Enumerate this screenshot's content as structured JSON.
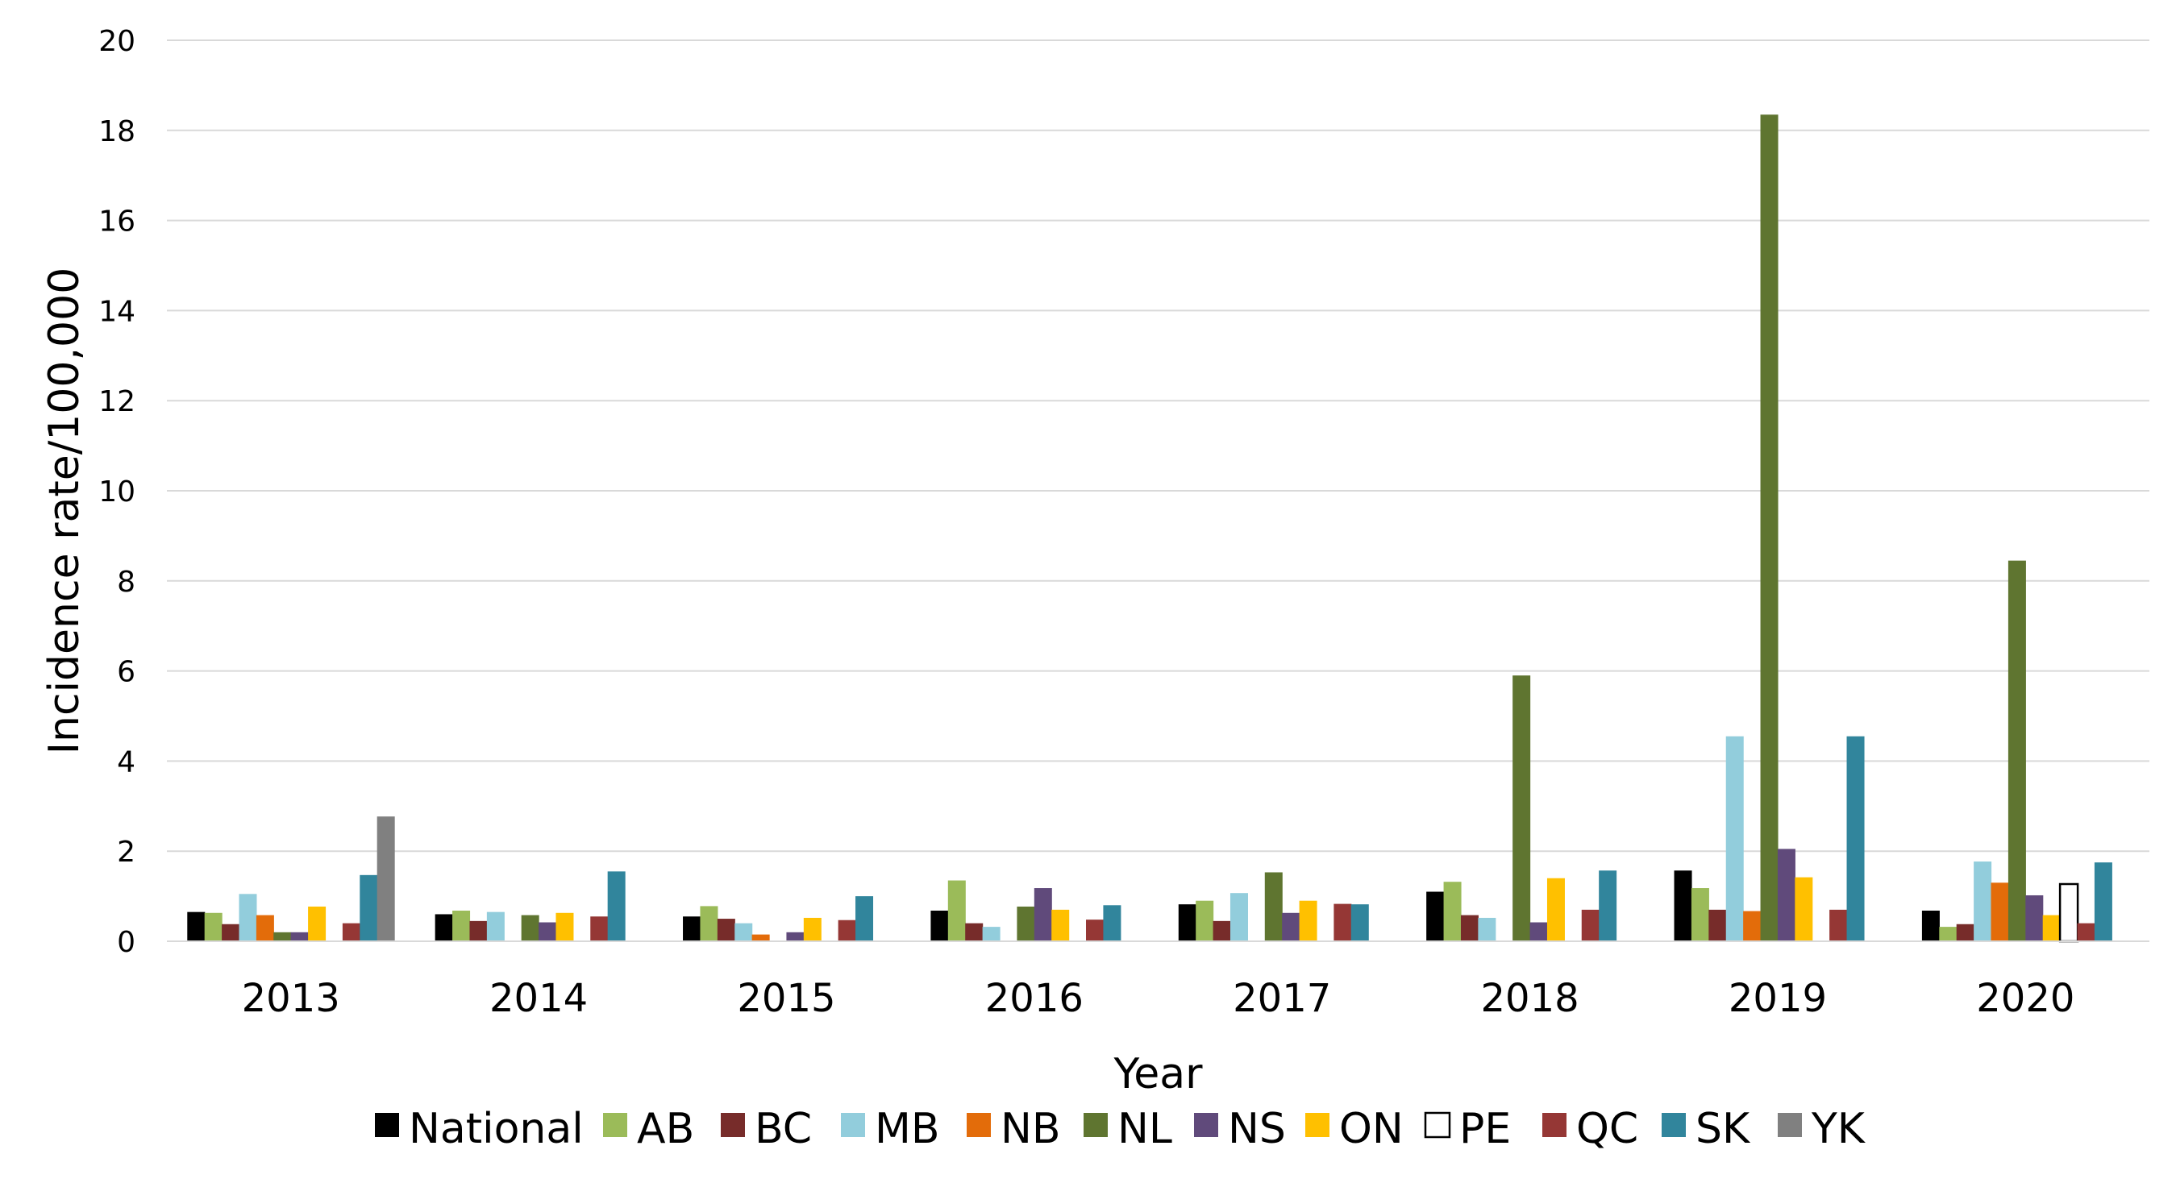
{
  "chart_data": {
    "type": "bar",
    "title": "",
    "xlabel": "Year",
    "ylabel": "Incidence rate/100,000",
    "ylim": [
      0,
      20
    ],
    "yticks": [
      0,
      2,
      4,
      6,
      8,
      10,
      12,
      14,
      16,
      18,
      20
    ],
    "grid": "horizontal",
    "legend_position": "bottom",
    "categories": [
      "2013",
      "2014",
      "2015",
      "2016",
      "2017",
      "2018",
      "2019",
      "2020"
    ],
    "series": [
      {
        "name": "National",
        "color": "#000000",
        "values": [
          0.65,
          0.6,
          0.55,
          0.68,
          0.82,
          1.1,
          1.57,
          0.68
        ]
      },
      {
        "name": "AB",
        "color": "#9BBB59",
        "values": [
          0.63,
          0.68,
          0.78,
          1.35,
          0.9,
          1.32,
          1.18,
          0.32
        ]
      },
      {
        "name": "BC",
        "color": "#772C2A",
        "values": [
          0.38,
          0.45,
          0.5,
          0.4,
          0.45,
          0.58,
          0.7,
          0.38
        ]
      },
      {
        "name": "MB",
        "color": "#92CDDC",
        "values": [
          1.05,
          0.65,
          0.4,
          0.32,
          1.07,
          0.52,
          4.55,
          1.77
        ]
      },
      {
        "name": "NB",
        "color": "#E36C0A",
        "values": [
          0.58,
          null,
          0.15,
          null,
          null,
          null,
          0.67,
          1.3
        ]
      },
      {
        "name": "NL",
        "color": "#5F7530",
        "values": [
          0.2,
          0.58,
          null,
          0.77,
          1.53,
          5.9,
          18.35,
          8.45
        ]
      },
      {
        "name": "NS",
        "color": "#604A7B",
        "values": [
          0.2,
          0.42,
          0.2,
          1.18,
          0.63,
          0.42,
          2.05,
          1.02
        ]
      },
      {
        "name": "ON",
        "color": "#FFC000",
        "values": [
          0.77,
          0.63,
          0.52,
          0.7,
          0.9,
          1.4,
          1.42,
          0.58
        ]
      },
      {
        "name": "PE",
        "color": "#FFFFFF",
        "stroke": "#000000",
        "values": [
          null,
          null,
          null,
          null,
          null,
          null,
          null,
          1.27
        ]
      },
      {
        "name": "QC",
        "color": "#953735",
        "values": [
          0.4,
          0.55,
          0.47,
          0.48,
          0.83,
          0.7,
          0.7,
          0.4
        ]
      },
      {
        "name": "SK",
        "color": "#31859C",
        "values": [
          1.47,
          1.55,
          1.0,
          0.8,
          0.82,
          1.57,
          4.55,
          1.75
        ]
      },
      {
        "name": "YK",
        "color": "#808080",
        "values": [
          2.77,
          null,
          null,
          null,
          null,
          null,
          null,
          null
        ]
      }
    ]
  }
}
